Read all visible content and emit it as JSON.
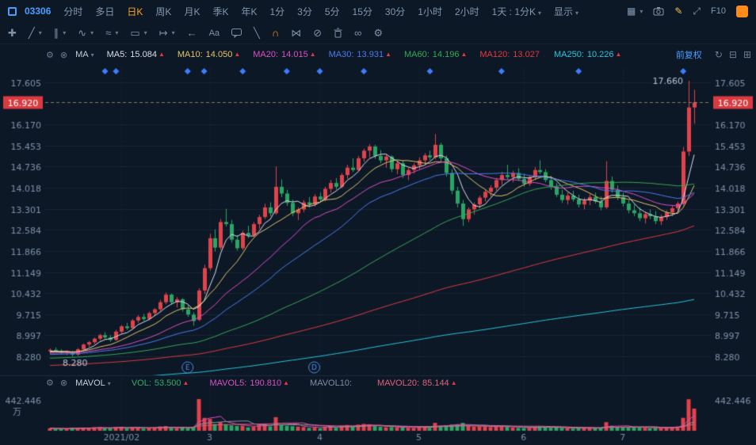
{
  "toolbar": {
    "symbol": "03306",
    "tabs": [
      {
        "label": "分时"
      },
      {
        "label": "多日"
      },
      {
        "label": "日K",
        "active": true
      },
      {
        "label": "周K"
      },
      {
        "label": "月K"
      },
      {
        "label": "季K"
      },
      {
        "label": "年K"
      },
      {
        "label": "1分"
      },
      {
        "label": "3分"
      },
      {
        "label": "5分"
      },
      {
        "label": "15分"
      },
      {
        "label": "30分"
      },
      {
        "label": "1小时"
      },
      {
        "label": "2小时"
      }
    ],
    "compare": "1天 : 1分K",
    "display": "显示",
    "f10": "F10"
  },
  "glyphs": {
    "caret": "▾",
    "gear": "⚙",
    "close": "⊗",
    "pencil": "✎",
    "expand": "⤢",
    "grid": "▦",
    "refresh": "↻",
    "collapse": "⊟",
    "enlarge": "⊞"
  },
  "draw_tools": [
    {
      "name": "move",
      "glyph": "✚"
    },
    {
      "name": "trendline",
      "glyph": "╱",
      "caret": "▾"
    },
    {
      "name": "parallel",
      "glyph": "∥",
      "caret": "▾"
    },
    {
      "name": "zigzag",
      "glyph": "∿",
      "caret": "▾"
    },
    {
      "name": "wave",
      "glyph": "≈",
      "caret": "▾"
    },
    {
      "name": "rect",
      "glyph": "▭",
      "caret": "▾"
    },
    {
      "name": "extend",
      "glyph": "↦",
      "caret": "▾"
    },
    {
      "name": "arrow-left",
      "glyph": "←"
    },
    {
      "name": "text",
      "glyph": "Aa"
    },
    {
      "name": "comment"
    },
    {
      "name": "slash",
      "glyph": "╲"
    },
    {
      "name": "magnet",
      "glyph": "∩"
    },
    {
      "name": "nodes",
      "glyph": "⋈"
    },
    {
      "name": "ban",
      "glyph": "⊘"
    },
    {
      "name": "trash"
    },
    {
      "name": "rings",
      "glyph": "∞"
    },
    {
      "name": "settings",
      "glyph": "⚙"
    }
  ],
  "indicators": {
    "name": "MA",
    "adjust": "前复权",
    "items": [
      {
        "label": "MA5:",
        "value": "15.084",
        "arrow": "▲",
        "color": "#d8dee8"
      },
      {
        "label": "MA10:",
        "value": "14.050",
        "arrow": "▲",
        "color": "#e3c567"
      },
      {
        "label": "MA20:",
        "value": "14.015",
        "arrow": "▲",
        "color": "#db4fc4"
      },
      {
        "label": "MA30:",
        "value": "13.931",
        "arrow": "▲",
        "color": "#4a7ceb"
      },
      {
        "label": "MA60:",
        "value": "14.196",
        "arrow": "▲",
        "color": "#35a853"
      },
      {
        "label": "MA120:",
        "value": "13.027",
        "arrow": "▲",
        "color": "#e0393f"
      },
      {
        "label": "MA250:",
        "value": "10.226",
        "arrow": "▲",
        "color": "#26c6da"
      }
    ]
  },
  "volume_indicators": {
    "name": "MAVOL",
    "items": [
      {
        "label": "VOL:",
        "value": "53.500",
        "arrow": "▲",
        "color": "#2bac6c"
      },
      {
        "label": "MAVOL5:",
        "value": "190.810",
        "arrow": "▲",
        "color": "#db4fc4"
      },
      {
        "label": "MAVOL10:",
        "value": "",
        "arrow": "",
        "color": "#7e8ea4"
      },
      {
        "label": "MAVOL20:",
        "value": "85.144",
        "arrow": "▲",
        "color": "#e0607a"
      }
    ]
  },
  "chart_data": {
    "type": "candlestick",
    "price_axis": {
      "min": 8.28,
      "max": 17.605,
      "step": 0.7175,
      "labels": [
        "17.605",
        "16.170",
        "15.453",
        "14.736",
        "14.018",
        "13.301",
        "12.584",
        "11.866",
        "11.149",
        "10.432",
        "9.715",
        "8.997",
        "8.280"
      ]
    },
    "current_price": "16.920",
    "high_annotation": {
      "day": 116,
      "price": 17.66,
      "label": "17.660"
    },
    "low_annotation": {
      "day": 4,
      "price": 8.28,
      "label": "8.280"
    },
    "x_axis": {
      "labels": [
        {
          "text": "2021/02",
          "day": 13
        },
        {
          "text": "3",
          "day": 29
        },
        {
          "text": "4",
          "day": 49
        },
        {
          "text": "5",
          "day": 67
        },
        {
          "text": "6",
          "day": 86
        },
        {
          "text": "7",
          "day": 104
        }
      ]
    },
    "volume_axis": {
      "max": 442.446,
      "label": "442.446",
      "unit": "万"
    },
    "ma_lines": [
      {
        "period": 5,
        "color": "#d8dee8"
      },
      {
        "period": 10,
        "color": "#e3c567"
      },
      {
        "period": 20,
        "color": "#db4fc4"
      },
      {
        "period": 30,
        "color": "#4a7ceb"
      },
      {
        "period": 60,
        "color": "#35a853"
      },
      {
        "period": 120,
        "color": "#e0393f"
      },
      {
        "period": 250,
        "color": "#26c6da"
      }
    ],
    "mavol_lines": [
      {
        "period": 5,
        "color": "#db4fc4"
      },
      {
        "period": 10,
        "color": "#8a97a8"
      },
      {
        "period": 20,
        "color": "#e0607a"
      }
    ],
    "event_markers": [
      {
        "day": 25,
        "text": "E"
      },
      {
        "day": 48,
        "text": "D"
      }
    ],
    "diamond_days": [
      10,
      12,
      25,
      28,
      35,
      43,
      49,
      57,
      69,
      82,
      96,
      115
    ],
    "colors": {
      "up": "#e0434a",
      "down": "#2aa564",
      "axis_text": "#7e90a8",
      "price_tag_bg": "#d93b40",
      "diamond": "#3d7eff",
      "event": "#4a90e8",
      "grid": "rgba(125,148,176,0.10)",
      "current_line": "rgba(205,190,130,0.6)"
    },
    "candles": [
      [
        8.45,
        8.55,
        8.38,
        8.5,
        35
      ],
      [
        8.5,
        8.58,
        8.42,
        8.46,
        28
      ],
      [
        8.46,
        8.52,
        8.36,
        8.4,
        30
      ],
      [
        8.4,
        8.48,
        8.32,
        8.44,
        26
      ],
      [
        8.44,
        8.47,
        8.28,
        8.34,
        40
      ],
      [
        8.34,
        8.56,
        8.3,
        8.52,
        38
      ],
      [
        8.52,
        8.72,
        8.48,
        8.68,
        45
      ],
      [
        8.68,
        8.8,
        8.6,
        8.76,
        40
      ],
      [
        8.76,
        8.92,
        8.7,
        8.88,
        48
      ],
      [
        8.88,
        9.05,
        8.82,
        9.0,
        52
      ],
      [
        9.0,
        9.1,
        8.85,
        8.92,
        38
      ],
      [
        8.92,
        9.0,
        8.78,
        8.84,
        35
      ],
      [
        8.84,
        9.18,
        8.8,
        9.12,
        50
      ],
      [
        9.12,
        9.35,
        9.05,
        9.3,
        55
      ],
      [
        9.3,
        9.42,
        9.18,
        9.24,
        32
      ],
      [
        9.24,
        9.55,
        9.2,
        9.5,
        48
      ],
      [
        9.5,
        9.68,
        9.42,
        9.62,
        45
      ],
      [
        9.62,
        9.72,
        9.48,
        9.55,
        30
      ],
      [
        9.55,
        9.8,
        9.5,
        9.75,
        42
      ],
      [
        9.75,
        9.92,
        9.65,
        9.88,
        46
      ],
      [
        9.88,
        10.2,
        9.82,
        10.12,
        60
      ],
      [
        10.12,
        10.45,
        10.05,
        10.38,
        65
      ],
      [
        10.38,
        10.42,
        10.05,
        10.12,
        40
      ],
      [
        10.12,
        10.3,
        9.95,
        10.22,
        35
      ],
      [
        10.22,
        10.26,
        9.8,
        9.88,
        45
      ],
      [
        9.88,
        10.02,
        9.62,
        9.7,
        40
      ],
      [
        9.7,
        9.78,
        9.32,
        9.48,
        55
      ],
      [
        9.52,
        10.6,
        9.48,
        10.52,
        442
      ],
      [
        10.52,
        11.4,
        10.4,
        11.28,
        180
      ],
      [
        11.28,
        12.45,
        11.2,
        12.3,
        165
      ],
      [
        12.3,
        12.6,
        11.85,
        11.98,
        95
      ],
      [
        11.98,
        12.95,
        11.9,
        12.85,
        120
      ],
      [
        12.85,
        13.3,
        12.7,
        12.78,
        90
      ],
      [
        12.78,
        12.92,
        12.15,
        12.25,
        75
      ],
      [
        12.25,
        12.4,
        11.88,
        11.96,
        68
      ],
      [
        11.96,
        12.55,
        11.9,
        12.48,
        72
      ],
      [
        12.48,
        12.72,
        12.3,
        12.4,
        48
      ],
      [
        12.4,
        12.85,
        12.35,
        12.78,
        55
      ],
      [
        12.78,
        13.1,
        12.62,
        13.02,
        85
      ],
      [
        13.02,
        13.48,
        12.95,
        13.35,
        95
      ],
      [
        13.35,
        13.52,
        13.05,
        13.15,
        60
      ],
      [
        13.15,
        14.74,
        13.1,
        14.05,
        190
      ],
      [
        14.05,
        14.3,
        13.7,
        13.82,
        85
      ],
      [
        13.82,
        13.95,
        13.4,
        13.5,
        70
      ],
      [
        13.5,
        13.62,
        13.05,
        13.15,
        65
      ],
      [
        13.15,
        13.35,
        12.92,
        13.28,
        58
      ],
      [
        13.28,
        13.6,
        13.18,
        13.52,
        52
      ],
      [
        13.52,
        13.7,
        13.35,
        13.45,
        40
      ],
      [
        13.45,
        13.8,
        13.38,
        13.72,
        48
      ],
      [
        13.72,
        13.85,
        13.52,
        13.62,
        35
      ],
      [
        13.62,
        14.05,
        13.55,
        13.98,
        60
      ],
      [
        13.98,
        14.28,
        13.85,
        14.18,
        65
      ],
      [
        14.18,
        14.35,
        13.95,
        14.05,
        42
      ],
      [
        14.05,
        14.52,
        14.0,
        14.45,
        70
      ],
      [
        14.45,
        14.8,
        14.32,
        14.7,
        80
      ],
      [
        14.7,
        15.02,
        14.55,
        14.62,
        58
      ],
      [
        14.62,
        15.1,
        14.58,
        15.02,
        85
      ],
      [
        15.02,
        15.35,
        14.9,
        15.28,
        95
      ],
      [
        15.28,
        15.5,
        15.05,
        15.42,
        90
      ],
      [
        15.42,
        15.48,
        15.0,
        15.1,
        65
      ],
      [
        15.1,
        15.3,
        14.85,
        14.95,
        55
      ],
      [
        14.95,
        15.15,
        14.7,
        15.08,
        48
      ],
      [
        15.08,
        15.12,
        14.55,
        14.65,
        52
      ],
      [
        14.65,
        14.92,
        14.48,
        14.85,
        45
      ],
      [
        14.85,
        14.95,
        14.35,
        14.45,
        50
      ],
      [
        14.45,
        14.7,
        14.28,
        14.62,
        42
      ],
      [
        14.62,
        14.85,
        14.5,
        14.78,
        40
      ],
      [
        14.78,
        15.05,
        14.65,
        14.95,
        55
      ],
      [
        14.95,
        15.2,
        14.8,
        15.12,
        60
      ],
      [
        15.12,
        15.28,
        14.95,
        15.05,
        42
      ],
      [
        15.05,
        15.85,
        14.98,
        15.48,
        110
      ],
      [
        15.48,
        15.55,
        14.9,
        15.02,
        70
      ],
      [
        15.02,
        15.12,
        14.4,
        14.52,
        75
      ],
      [
        14.52,
        14.65,
        13.8,
        13.92,
        85
      ],
      [
        13.92,
        14.05,
        13.35,
        13.48,
        90
      ],
      [
        13.48,
        13.6,
        12.72,
        12.95,
        110
      ],
      [
        12.95,
        13.35,
        12.85,
        13.28,
        70
      ],
      [
        13.28,
        13.52,
        13.1,
        13.45,
        55
      ],
      [
        13.45,
        13.75,
        13.32,
        13.68,
        60
      ],
      [
        13.68,
        13.95,
        13.55,
        13.88,
        58
      ],
      [
        13.88,
        14.1,
        13.72,
        14.02,
        52
      ],
      [
        14.02,
        14.35,
        13.92,
        14.28,
        65
      ],
      [
        14.28,
        14.55,
        14.12,
        14.45,
        60
      ],
      [
        14.45,
        14.8,
        14.3,
        14.38,
        55
      ],
      [
        14.38,
        14.6,
        14.2,
        14.52,
        45
      ],
      [
        14.52,
        14.68,
        14.25,
        14.32,
        40
      ],
      [
        14.32,
        14.5,
        14.05,
        14.15,
        38
      ],
      [
        14.15,
        14.45,
        14.08,
        14.38,
        42
      ],
      [
        14.38,
        14.72,
        14.28,
        14.62,
        55
      ],
      [
        14.62,
        14.95,
        14.48,
        14.55,
        60
      ],
      [
        14.55,
        14.65,
        14.2,
        14.28,
        45
      ],
      [
        14.28,
        14.42,
        13.95,
        14.05,
        42
      ],
      [
        14.05,
        14.18,
        13.7,
        13.78,
        48
      ],
      [
        13.78,
        13.95,
        13.5,
        13.6,
        40
      ],
      [
        13.6,
        13.85,
        13.45,
        13.75,
        35
      ],
      [
        13.75,
        13.92,
        13.55,
        13.62,
        30
      ],
      [
        13.62,
        13.78,
        13.35,
        13.45,
        38
      ],
      [
        13.45,
        13.68,
        13.28,
        13.58,
        35
      ],
      [
        13.58,
        13.8,
        13.42,
        13.7,
        40
      ],
      [
        13.7,
        13.85,
        13.48,
        13.55,
        32
      ],
      [
        13.55,
        13.72,
        13.25,
        13.35,
        45
      ],
      [
        13.35,
        14.92,
        13.3,
        14.25,
        120
      ],
      [
        14.25,
        14.4,
        13.85,
        13.95,
        70
      ],
      [
        13.95,
        14.1,
        13.6,
        13.7,
        55
      ],
      [
        13.7,
        13.85,
        13.38,
        13.48,
        48
      ],
      [
        13.48,
        13.6,
        13.15,
        13.25,
        52
      ],
      [
        13.25,
        13.45,
        13.05,
        13.15,
        45
      ],
      [
        13.15,
        13.35,
        12.88,
        12.98,
        50
      ],
      [
        12.98,
        13.2,
        12.8,
        13.12,
        42
      ],
      [
        13.12,
        13.28,
        12.95,
        13.05,
        35
      ],
      [
        13.05,
        13.22,
        12.78,
        12.88,
        40
      ],
      [
        12.88,
        13.1,
        12.75,
        13.02,
        38
      ],
      [
        13.02,
        13.25,
        12.92,
        13.18,
        45
      ],
      [
        13.18,
        13.4,
        13.05,
        13.32,
        50
      ],
      [
        13.32,
        13.55,
        13.2,
        13.48,
        60
      ],
      [
        13.48,
        15.4,
        13.42,
        15.25,
        180
      ],
      [
        15.25,
        17.66,
        15.1,
        16.75,
        440
      ],
      [
        16.75,
        17.35,
        16.2,
        16.92,
        310
      ]
    ]
  }
}
